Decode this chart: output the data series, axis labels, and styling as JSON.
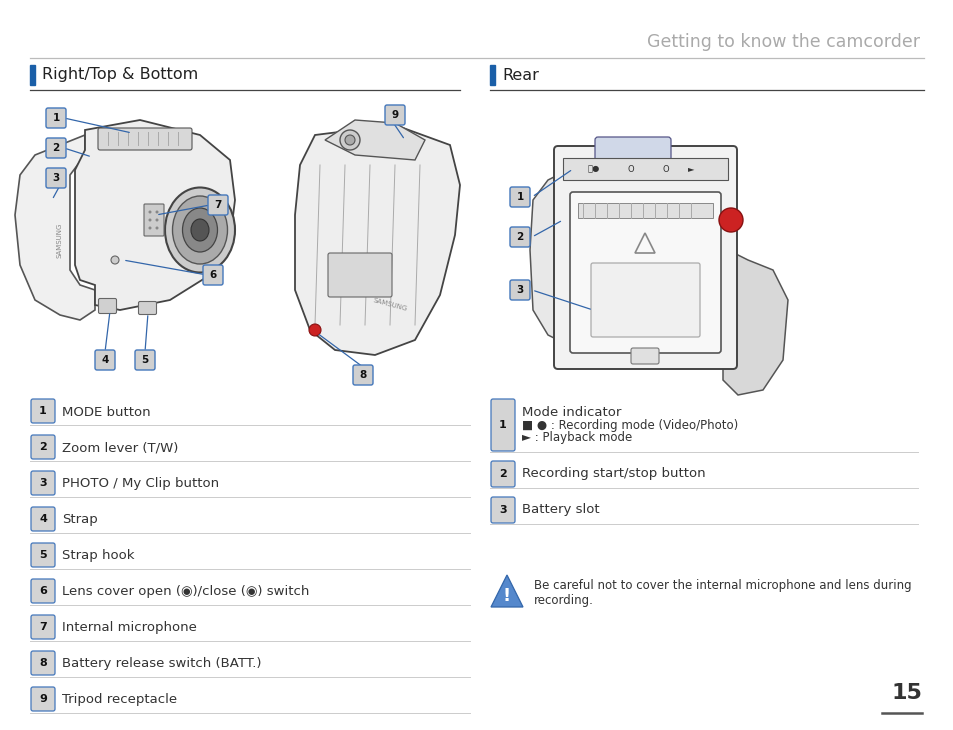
{
  "title": "Getting to know the camcorder",
  "title_color": "#aaaaaa",
  "title_fontsize": 12.5,
  "page_number": "15",
  "bg_color": "#ffffff",
  "section_left": "Right/Top & Bottom",
  "section_right": "Rear",
  "section_fontsize": 11.5,
  "section_bar_color": "#1a5fa8",
  "left_items": [
    {
      "num": "1",
      "text": "MODE button"
    },
    {
      "num": "2",
      "text": "Zoom lever (T/W)"
    },
    {
      "num": "3",
      "text": "PHOTO / My Clip button"
    },
    {
      "num": "4",
      "text": "Strap"
    },
    {
      "num": "5",
      "text": "Strap hook"
    },
    {
      "num": "6",
      "text": "Lens cover open (◉)/close (◉) switch"
    },
    {
      "num": "7",
      "text": "Internal microphone"
    },
    {
      "num": "8",
      "text": "Battery release switch (BATT.)"
    },
    {
      "num": "9",
      "text": "Tripod receptacle"
    }
  ],
  "right_items": [
    {
      "num": "1",
      "text": "Mode indicator",
      "subtext": [
        "■ ● : Recording mode (Video/Photo)",
        "► : Playback mode"
      ]
    },
    {
      "num": "2",
      "text": "Recording start/stop button",
      "subtext": []
    },
    {
      "num": "3",
      "text": "Battery slot",
      "subtext": []
    }
  ],
  "warning_text": "Be careful not to cover the internal microphone and lens during\nrecording.",
  "divider_color": "#cccccc",
  "num_box_bg": "#d0d0d0",
  "num_box_border": "#4477bb",
  "text_color": "#333333",
  "item_fontsize": 9.5,
  "line_color": "#999999"
}
